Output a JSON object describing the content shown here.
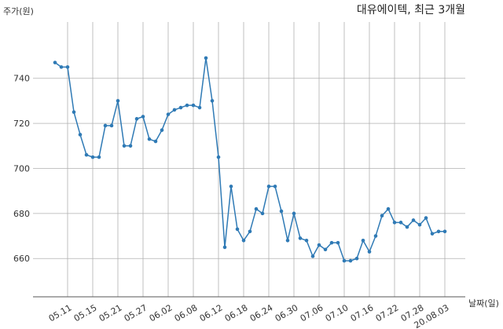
{
  "chart_data": {
    "type": "line",
    "title": "대유에이텍, 최근 3개월",
    "xlabel": "날짜(일)",
    "ylabel": "주가(원)",
    "ylim": [
      643,
      765
    ],
    "yticks": [
      660,
      680,
      700,
      720,
      740
    ],
    "grid": true,
    "line_color": "#2f7ab5",
    "x": [
      "05.07",
      "05.08",
      "05.11",
      "05.12",
      "05.13",
      "05.14",
      "05.15",
      "05.18",
      "05.19",
      "05.20",
      "05.21",
      "05.22",
      "05.25",
      "05.26",
      "05.27",
      "05.28",
      "05.29",
      "06.01",
      "06.02",
      "06.03",
      "06.04",
      "06.05",
      "06.08",
      "06.09",
      "06.10",
      "06.11",
      "06.12",
      "06.15",
      "06.16",
      "06.17",
      "06.18",
      "06.19",
      "06.22",
      "06.23",
      "06.24",
      "06.25",
      "06.26",
      "06.29",
      "06.30",
      "07.01",
      "07.02",
      "07.03",
      "07.06",
      "07.07",
      "07.08",
      "07.09",
      "07.10",
      "07.13",
      "07.14",
      "07.15",
      "07.16",
      "07.17",
      "07.20",
      "07.21",
      "07.22",
      "07.23",
      "07.24",
      "07.27",
      "07.28",
      "07.29",
      "07.30",
      "07.31",
      "20.08.03"
    ],
    "xticks": [
      "05.11",
      "05.15",
      "05.21",
      "05.27",
      "06.02",
      "06.08",
      "06.12",
      "06.18",
      "06.24",
      "06.30",
      "07.06",
      "07.10",
      "07.16",
      "07.22",
      "07.28",
      "20.08.03"
    ],
    "values": [
      747,
      745,
      745,
      725,
      715,
      706,
      705,
      705,
      719,
      719,
      730,
      710,
      710,
      722,
      723,
      713,
      712,
      717,
      724,
      726,
      727,
      728,
      728,
      727,
      749,
      730,
      705,
      665,
      692,
      673,
      668,
      672,
      682,
      680,
      692,
      692,
      681,
      668,
      680,
      669,
      668,
      661,
      666,
      664,
      667,
      667,
      659,
      659,
      660,
      668,
      663,
      670,
      679,
      682,
      676,
      676,
      674,
      677,
      675,
      678,
      671,
      672,
      672
    ]
  }
}
